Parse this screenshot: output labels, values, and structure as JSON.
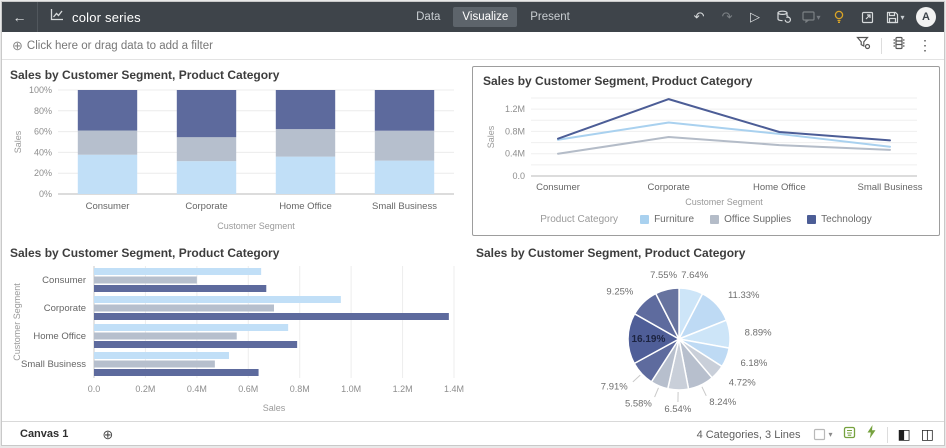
{
  "header": {
    "title": "color series",
    "tabs": [
      {
        "label": "Data",
        "active": false
      },
      {
        "label": "Visualize",
        "active": true
      },
      {
        "label": "Present",
        "active": false
      }
    ],
    "avatar_initial": "A"
  },
  "icons": {
    "back": "←",
    "undo": "↶",
    "redo": "↷",
    "play": "▷",
    "chevron": "▾",
    "add": "⊕",
    "kebab": "⋮",
    "left_panel": "◧",
    "right_panel": "◫"
  },
  "theme": {
    "header_bg": "#3e444a",
    "selected_tab_bg": "#5d646b",
    "lightbulb_color": "#d9a427",
    "green_icon_color": "#76a23f",
    "selected_viz_border": "#9d9d9d"
  },
  "filterbar": {
    "placeholder": "Click here or drag data to add a filter"
  },
  "charts": [
    {
      "chart_data": {
        "type": "bar",
        "stacked": "percent",
        "title": "Sales by Customer Segment, Product Category",
        "categories": [
          "Consumer",
          "Corporate",
          "Home Office",
          "Small Business"
        ],
        "series": [
          {
            "name": "Furniture",
            "color": "#c1dff7",
            "values": [
              0.65,
              0.96,
              0.755,
              0.525
            ]
          },
          {
            "name": "Office Supplies",
            "color": "#b6bfcd",
            "values": [
              0.4,
              0.7,
              0.555,
              0.47
            ]
          },
          {
            "name": "Technology",
            "color": "#5d6a9d",
            "values": [
              0.67,
              1.38,
              0.79,
              0.64
            ]
          }
        ],
        "xlabel": "Customer Segment",
        "ylabel": "Sales",
        "ylim": [
          0,
          100
        ],
        "yticks": [
          "0%",
          "20%",
          "40%",
          "60%",
          "80%",
          "100%"
        ]
      }
    },
    {
      "chart_data": {
        "type": "line",
        "title": "Sales by Customer Segment, Product Category",
        "categories": [
          "Consumer",
          "Corporate",
          "Home Office",
          "Small Business"
        ],
        "series": [
          {
            "name": "Furniture",
            "color": "#a9d1ef",
            "values": [
              0.65,
              0.96,
              0.755,
              0.525
            ]
          },
          {
            "name": "Office Supplies",
            "color": "#b4bcc8",
            "values": [
              0.4,
              0.7,
              0.555,
              0.47
            ]
          },
          {
            "name": "Technology",
            "color": "#4c5d96",
            "values": [
              0.67,
              1.38,
              0.79,
              0.64
            ]
          }
        ],
        "xlabel": "Customer Segment",
        "ylabel": "Sales",
        "ylim": [
          0,
          1.4
        ],
        "grid_step": 0.2,
        "yticks": [
          {
            "v": 0,
            "label": "0.0"
          },
          {
            "v": 0.4,
            "label": "0.4M"
          },
          {
            "v": 0.8,
            "label": "0.8M"
          },
          {
            "v": 1.2,
            "label": "1.2M"
          }
        ],
        "legend_title": "Product Category",
        "legend_position": "bottom"
      }
    },
    {
      "chart_data": {
        "type": "bar",
        "orientation": "horizontal",
        "title": "Sales by Customer Segment, Product Category",
        "categories": [
          "Consumer",
          "Corporate",
          "Home Office",
          "Small Business"
        ],
        "series": [
          {
            "name": "Furniture",
            "color": "#c1dff7",
            "values": [
              0.65,
              0.96,
              0.755,
              0.525
            ]
          },
          {
            "name": "Office Supplies",
            "color": "#b6bfcd",
            "values": [
              0.4,
              0.7,
              0.555,
              0.47
            ]
          },
          {
            "name": "Technology",
            "color": "#5d6a9d",
            "values": [
              0.67,
              1.38,
              0.79,
              0.64
            ]
          }
        ],
        "xlabel": "Sales",
        "ylabel": "Customer Segment",
        "xlim": [
          0,
          1.4
        ],
        "xticks": [
          {
            "v": 0,
            "label": "0.0"
          },
          {
            "v": 0.2,
            "label": "0.2M"
          },
          {
            "v": 0.4,
            "label": "0.4M"
          },
          {
            "v": 0.6,
            "label": "0.6M"
          },
          {
            "v": 0.8,
            "label": "0.8M"
          },
          {
            "v": 1.0,
            "label": "1.0M"
          },
          {
            "v": 1.2,
            "label": "1.2M"
          },
          {
            "v": 1.4,
            "label": "1.4M"
          }
        ]
      }
    },
    {
      "chart_data": {
        "type": "pie",
        "title": "Sales by Customer Segment, Product Category",
        "slices": [
          {
            "label": "7.64%",
            "value": 7.64,
            "color": "#cde5f8"
          },
          {
            "label": "11.33%",
            "value": 11.33,
            "color": "#bedaf4"
          },
          {
            "label": "8.89%",
            "value": 8.89,
            "color": "#cde5f8"
          },
          {
            "label": "6.18%",
            "value": 6.18,
            "color": "#bedaf4"
          },
          {
            "label": "4.72%",
            "value": 4.72,
            "color": "#c9cfd9"
          },
          {
            "label": "8.24%",
            "value": 8.24,
            "color": "#b7bfcd",
            "leader": true
          },
          {
            "label": "6.54%",
            "value": 6.54,
            "color": "#c9cfd9",
            "leader": true
          },
          {
            "label": "5.58%",
            "value": 5.58,
            "color": "#b7bfcd",
            "leader": true
          },
          {
            "label": "7.91%",
            "value": 7.91,
            "color": "#5e6b9e",
            "leader": true
          },
          {
            "label": "16.19%",
            "value": 16.19,
            "color": "#4f5e98",
            "label_inside": true
          },
          {
            "label": "9.25%",
            "value": 9.25,
            "color": "#5e6b9e"
          },
          {
            "label": "7.55%",
            "value": 7.55,
            "color": "#67739f"
          }
        ]
      }
    }
  ],
  "footer": {
    "canvas_tab": "Canvas 1",
    "status": "4 Categories, 3 Lines"
  }
}
